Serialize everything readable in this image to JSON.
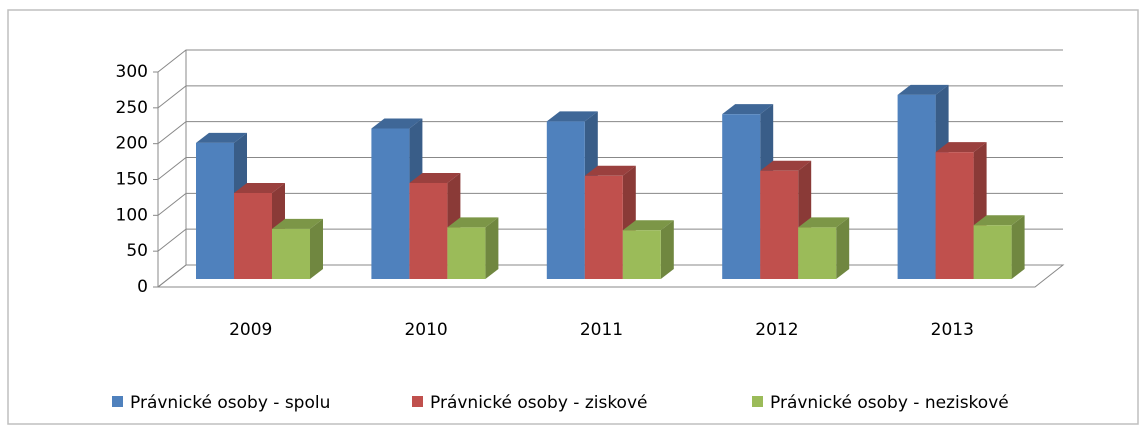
{
  "chart_data": {
    "type": "bar3d",
    "categories": [
      "2009",
      "2010",
      "2011",
      "2012",
      "2013"
    ],
    "series": [
      {
        "name": "Právnické osoby - spolu",
        "color": "#4f81bd",
        "values": [
          190,
          210,
          220,
          230,
          257
        ]
      },
      {
        "name": "Právnické osoby - ziskové",
        "color": "#c0504d",
        "values": [
          120,
          134,
          144,
          151,
          177
        ]
      },
      {
        "name": "Právnické osoby - neziskové",
        "color": "#9bbb59",
        "values": [
          70,
          72,
          68,
          72,
          75
        ]
      }
    ],
    "ylim": [
      0,
      300
    ],
    "yticks": [
      0,
      50,
      100,
      150,
      200,
      250,
      300
    ],
    "grid": true,
    "legend": "bottom"
  }
}
